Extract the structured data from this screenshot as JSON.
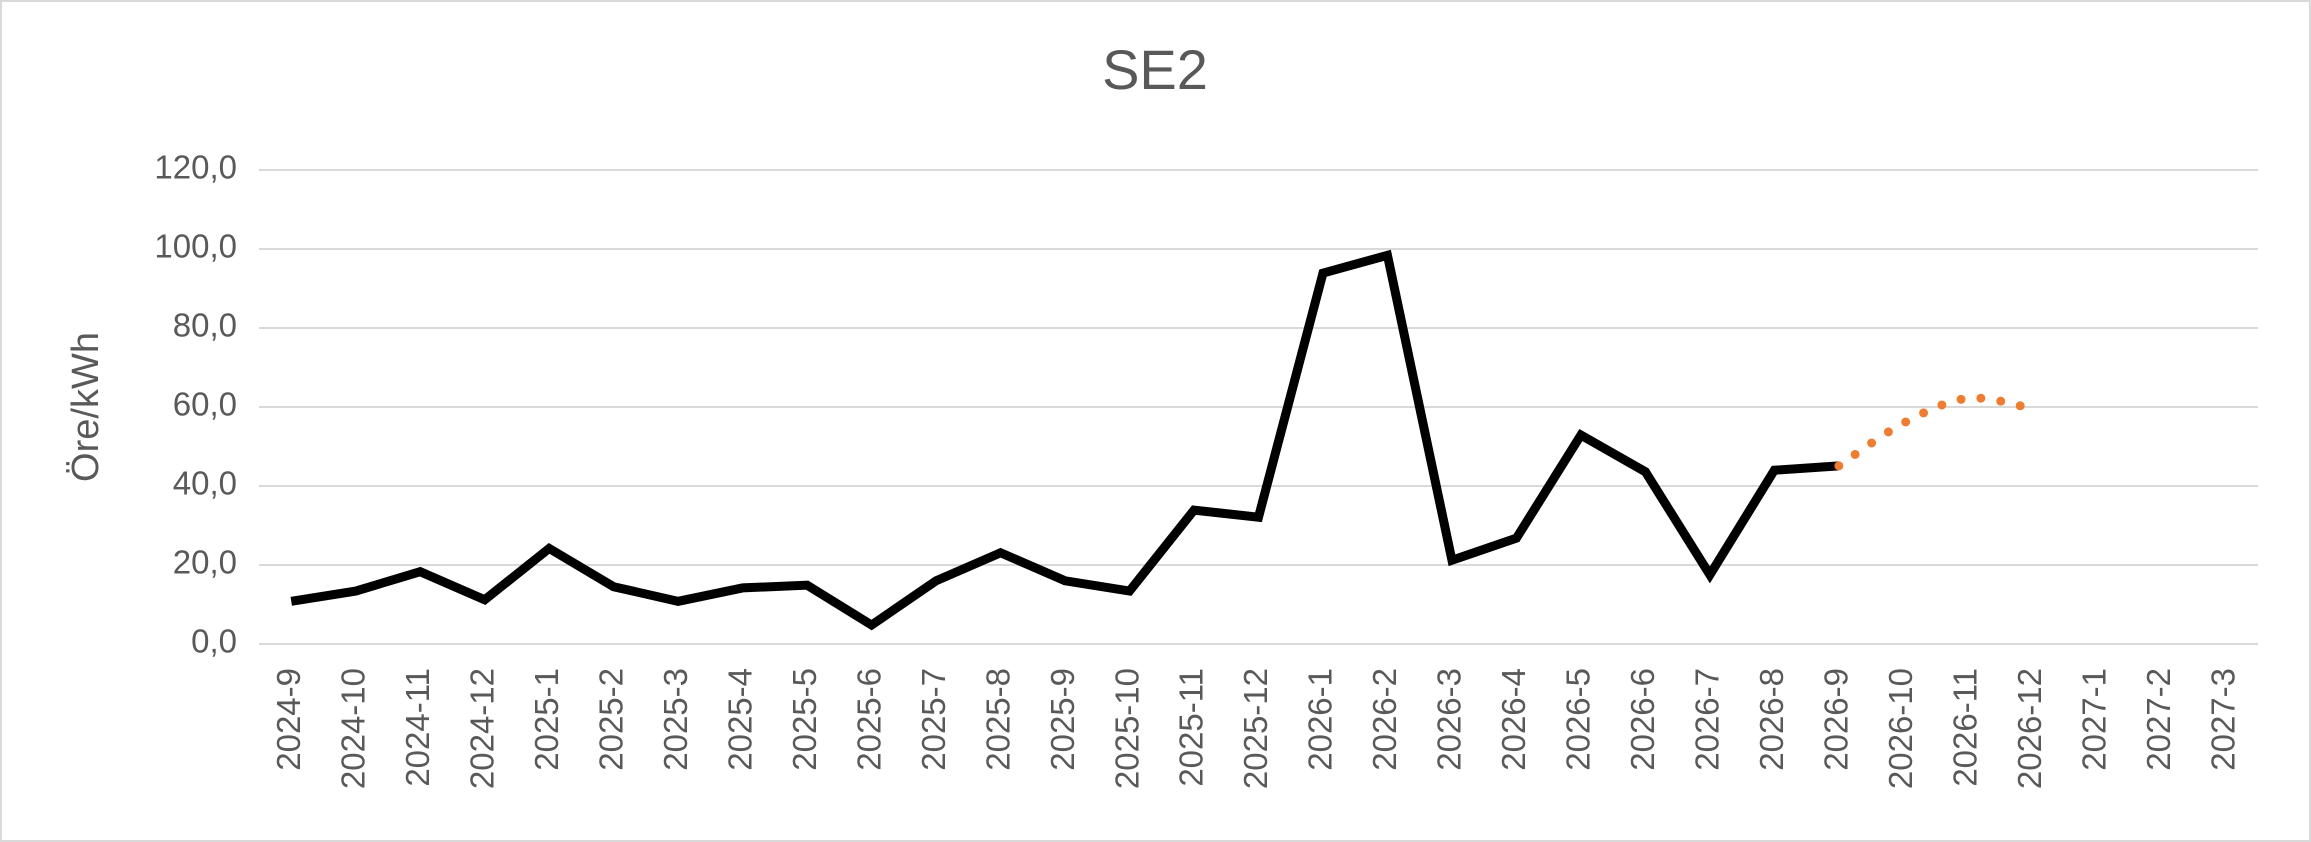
{
  "chart_data": {
    "type": "line",
    "title": "SE2",
    "y_label": "Öre/kWh",
    "categories": [
      "2024-9",
      "2024-10",
      "2024-11",
      "2024-12",
      "2025-1",
      "2025-2",
      "2025-3",
      "2025-4",
      "2025-5",
      "2025-6",
      "2025-7",
      "2025-8",
      "2025-9",
      "2025-10",
      "2025-11",
      "2025-12",
      "2026-1",
      "2026-2",
      "2026-3",
      "2026-4",
      "2026-5",
      "2026-6",
      "2026-7",
      "2026-8",
      "2026-9",
      "2026-10",
      "2026-11",
      "2026-12",
      "2027-1",
      "2027-2",
      "2027-3"
    ],
    "series": [
      {
        "color": "#000000",
        "style": "solid",
        "values": [
          10.8,
          13.4,
          18.3,
          11.2,
          24.2,
          14.5,
          10.8,
          14.2,
          14.9,
          4.8,
          16.0,
          23.1,
          16.0,
          13.4,
          33.9,
          32.1,
          93.9,
          98.4,
          21.2,
          26.8,
          52.9,
          43.6,
          17.5,
          44.0,
          45.1,
          null,
          null,
          null,
          null,
          null,
          null
        ]
      },
      {
        "color": "#ed7d31",
        "style": "dotted",
        "smooth": true,
        "values": [
          null,
          null,
          null,
          null,
          null,
          null,
          null,
          null,
          null,
          null,
          null,
          null,
          null,
          null,
          null,
          null,
          null,
          null,
          null,
          null,
          null,
          null,
          null,
          null,
          45.1,
          55.9,
          62.2,
          59.6,
          null,
          null,
          null
        ]
      }
    ],
    "ylim": [
      0,
      120
    ],
    "yticks": [
      {
        "value": 0,
        "label": "0,0"
      },
      {
        "value": 20,
        "label": "20,0"
      },
      {
        "value": 40,
        "label": "40,0"
      },
      {
        "value": 60,
        "label": "60,0"
      },
      {
        "value": 80,
        "label": "80,0"
      },
      {
        "value": 100,
        "label": "100,0"
      },
      {
        "value": 120,
        "label": "120,0"
      }
    ],
    "grid": true
  }
}
